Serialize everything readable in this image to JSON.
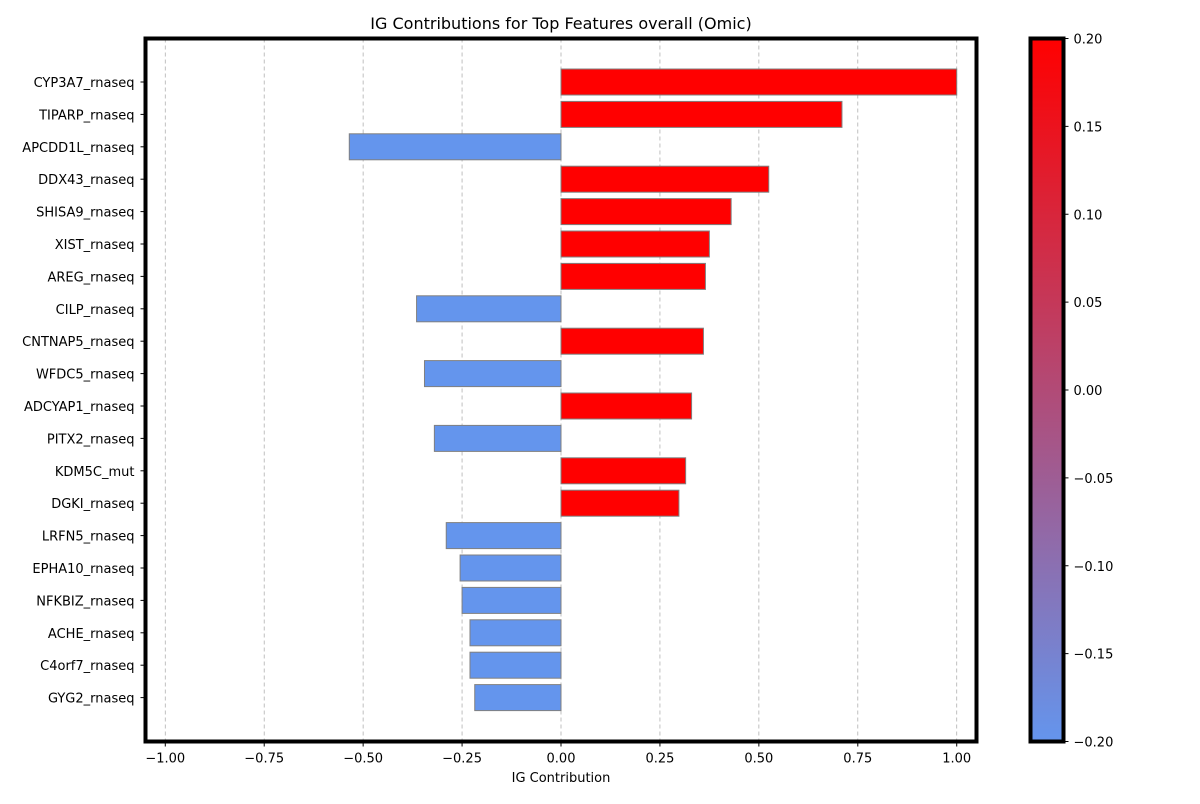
{
  "chart_data": {
    "type": "bar",
    "orientation": "horizontal",
    "title": "IG Contributions for Top Features overall (Omic)",
    "xlabel": "IG Contribution",
    "ylabel": "",
    "xlim": [
      -1.05,
      1.05
    ],
    "x_ticks": [
      -1.0,
      -0.75,
      -0.5,
      -0.25,
      0.0,
      0.25,
      0.5,
      0.75,
      1.0
    ],
    "x_tick_labels": [
      "−1.00",
      "−0.75",
      "−0.50",
      "−0.25",
      "0.00",
      "0.25",
      "0.50",
      "0.75",
      "1.00"
    ],
    "grid": "x-dashed",
    "categories": [
      "CYP3A7_rnaseq",
      "TIPARP_rnaseq",
      "APCDD1L_rnaseq",
      "DDX43_rnaseq",
      "SHISA9_rnaseq",
      "XIST_rnaseq",
      "AREG_rnaseq",
      "CILP_rnaseq",
      "CNTNAP5_rnaseq",
      "WFDC5_rnaseq",
      "ADCYAP1_rnaseq",
      "PITX2_rnaseq",
      "KDM5C_mut",
      "DGKI_rnaseq",
      "LRFN5_rnaseq",
      "EPHA10_rnaseq",
      "NFKBIZ_rnaseq",
      "ACHE_rnaseq",
      "C4orf7_rnaseq",
      "GYG2_rnaseq"
    ],
    "values": [
      1.0,
      0.71,
      -0.535,
      0.525,
      0.43,
      0.375,
      0.365,
      -0.365,
      0.36,
      -0.345,
      0.33,
      -0.32,
      0.315,
      0.298,
      -0.29,
      -0.255,
      -0.25,
      -0.23,
      -0.23,
      -0.218
    ],
    "colors": {
      "positive": "#ff0000",
      "negative": "#6495ed",
      "bar_edge": "#808080",
      "grid": "#b0b0b0",
      "frame": "#000000"
    },
    "colorbar": {
      "range": [
        -0.2,
        0.2
      ],
      "ticks": [
        -0.2,
        -0.15,
        -0.1,
        -0.05,
        0.0,
        0.05,
        0.1,
        0.15,
        0.2
      ],
      "tick_labels": [
        "−0.20",
        "−0.15",
        "−0.10",
        "−0.05",
        "0.00",
        "0.05",
        "0.10",
        "0.15",
        "0.20"
      ],
      "color_low": "#6495ed",
      "color_high": "#ff0000"
    }
  }
}
